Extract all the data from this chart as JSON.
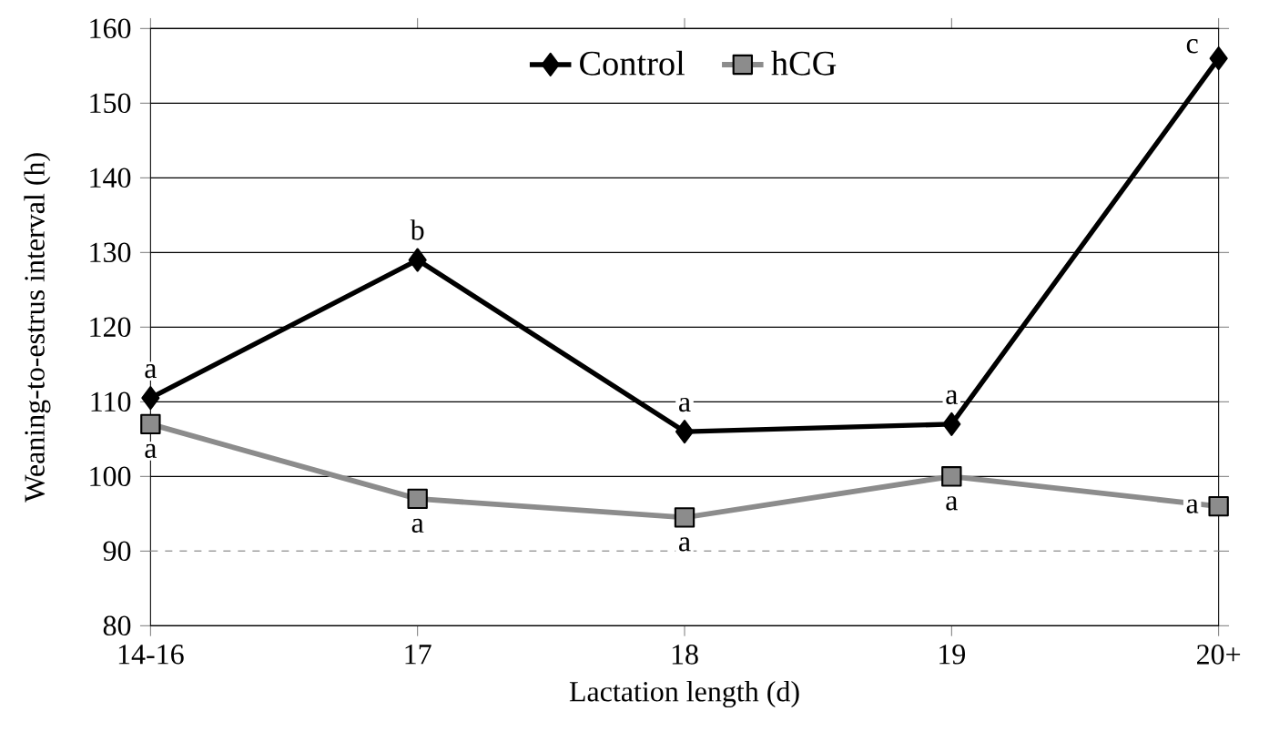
{
  "chart_data": {
    "type": "line",
    "xlabel": "Lactation length (d)",
    "ylabel": "Weaning-to-estrus interval (h)",
    "categories": [
      "14-16",
      "17",
      "18",
      "19",
      "20+"
    ],
    "series": [
      {
        "name": "Control",
        "color": "#000000",
        "marker": "diamond",
        "values": [
          110.5,
          129,
          106,
          107,
          156
        ]
      },
      {
        "name": "hCG",
        "color": "#8c8c8c",
        "marker": "square",
        "values": [
          107,
          97,
          94.5,
          100,
          96
        ]
      }
    ],
    "ylim": [
      80,
      160
    ],
    "yticks": [
      80,
      90,
      100,
      110,
      120,
      130,
      140,
      150,
      160
    ],
    "grid": "y",
    "legend": "top",
    "ref_lines": [
      {
        "axis": "y",
        "value": 90,
        "color": "#a0a0a0",
        "line_style": "dashed"
      }
    ],
    "annotations": [
      {
        "text": "a",
        "x": "14-16",
        "y": 110.5
      },
      {
        "text": "b",
        "x": "17",
        "y": 129
      },
      {
        "text": "a",
        "x": "18",
        "y": 106
      },
      {
        "text": "a",
        "x": "19",
        "y": 107
      },
      {
        "text": "c",
        "x": "20+",
        "y": 156
      },
      {
        "text": "a",
        "x": "14-16",
        "y": 107
      },
      {
        "text": "a",
        "x": "17",
        "y": 97
      },
      {
        "text": "a",
        "x": "18",
        "y": 94.5
      },
      {
        "text": "a",
        "x": "19",
        "y": 100
      },
      {
        "text": "a",
        "x": "20+",
        "y": 96
      }
    ]
  }
}
